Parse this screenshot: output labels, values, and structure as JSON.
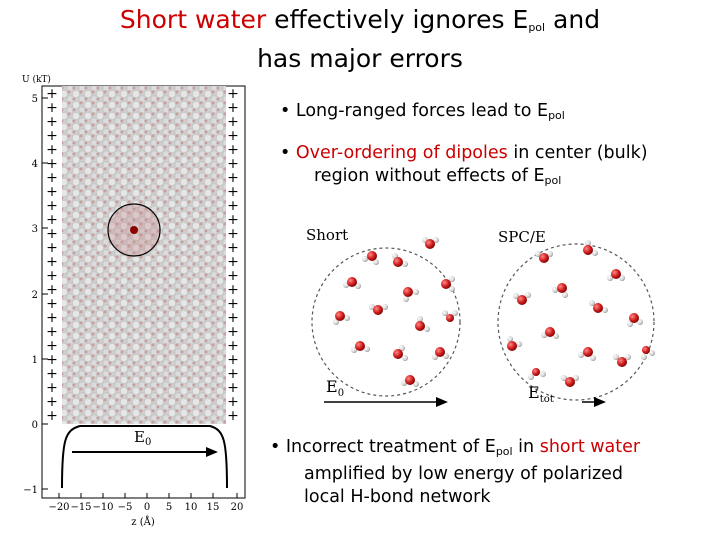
{
  "title": {
    "red_part": "Short water",
    "mid_part": " effectively ignores E",
    "sub": "pol",
    "end_part": " and",
    "line2": "has major errors"
  },
  "bullets": [
    {
      "lead": "• Long-ranged forces lead to E",
      "sub": "pol"
    },
    {
      "lead": "• ",
      "red": "Over-ordering of dipoles",
      "mid": " in center (bulk)",
      "line2": "region without effects of E",
      "sub": "pol"
    },
    {
      "lead": "• Incorrect treatment of E",
      "sub": "pol",
      "mid": " in ",
      "red": "short water",
      "line2": "amplified by low energy of polarized",
      "line3": "local H-bond network"
    }
  ],
  "left_plot": {
    "ylabel": "U (kT)",
    "yticks": [
      "5",
      "4",
      "3",
      "2",
      "1",
      "0",
      "−1"
    ],
    "xlabel": "z (Å)",
    "xticks": [
      "−20",
      "−15",
      "−10",
      "−5",
      "0",
      "5",
      "10",
      "15",
      "20"
    ],
    "field_label": "E",
    "field_sub": "0"
  },
  "snapshots": {
    "left_label": "Short",
    "right_label": "SPC/E",
    "left_field": "E",
    "left_field_sub": "0",
    "right_field": "E",
    "right_field_sub": "tot"
  },
  "colors": {
    "accent": "#cc0000",
    "oxygen": "#d42020",
    "hydrogen": "#d8d8d8"
  }
}
